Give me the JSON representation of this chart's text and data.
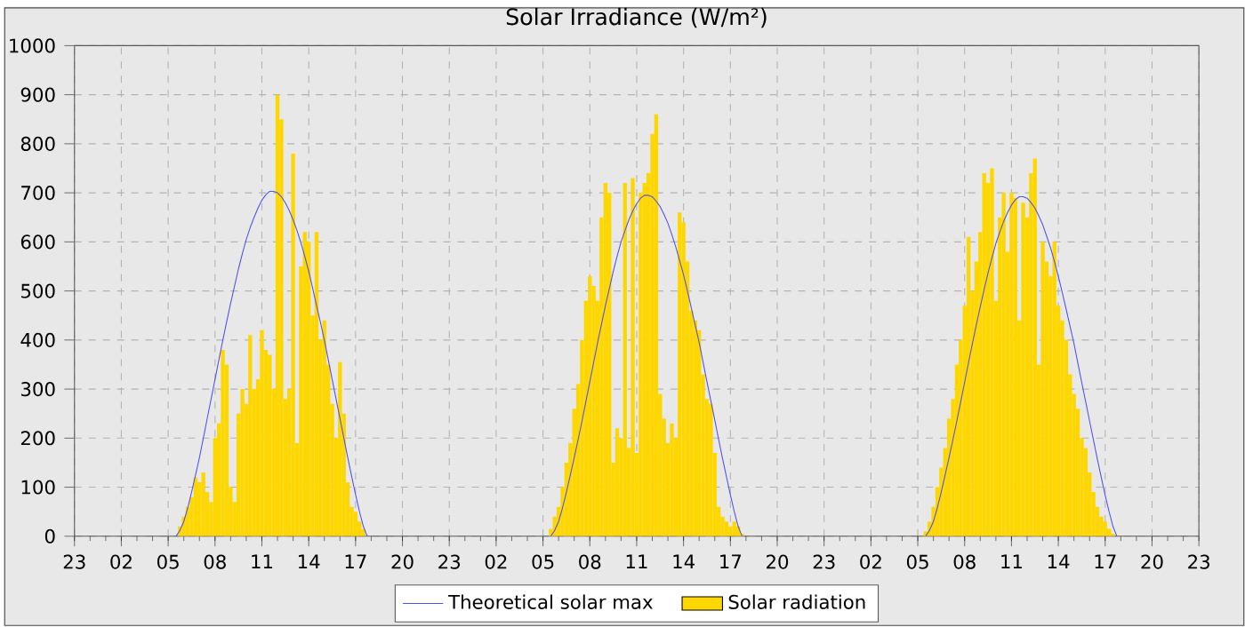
{
  "chart_data": {
    "type": "bar",
    "title": "Solar Irradiance (W/m²)",
    "categories": [
      "23",
      null,
      null,
      null,
      null,
      null,
      null,
      null,
      null,
      null,
      null,
      null,
      "02",
      null,
      null,
      null,
      null,
      null,
      null,
      null,
      null,
      null,
      null,
      null,
      "05",
      null,
      null,
      null,
      null,
      null,
      null,
      null,
      null,
      null,
      null,
      null,
      "08",
      null,
      null,
      null,
      null,
      null,
      null,
      null,
      null,
      null,
      null,
      null,
      "11",
      null,
      null,
      null,
      null,
      null,
      null,
      null,
      null,
      null,
      null,
      null,
      "14",
      null,
      null,
      null,
      null,
      null,
      null,
      null,
      null,
      null,
      null,
      null,
      "17",
      null,
      null,
      null,
      null,
      null,
      null,
      null,
      null,
      null,
      null,
      null,
      "20",
      null,
      null,
      null,
      null,
      null,
      null,
      null,
      null,
      null,
      null,
      null,
      "23",
      null,
      null,
      null,
      null,
      null,
      null,
      null,
      null,
      null,
      null,
      null,
      "02",
      null,
      null,
      null,
      null,
      null,
      null,
      null,
      null,
      null,
      null,
      null,
      "05",
      null,
      null,
      null,
      null,
      null,
      null,
      null,
      null,
      null,
      null,
      null,
      "08",
      null,
      null,
      null,
      null,
      null,
      null,
      null,
      null,
      null,
      null,
      null,
      "11",
      null,
      null,
      null,
      null,
      null,
      null,
      null,
      null,
      null,
      null,
      null,
      "14",
      null,
      null,
      null,
      null,
      null,
      null,
      null,
      null,
      null,
      null,
      null,
      "17",
      null,
      null,
      null,
      null,
      null,
      null,
      null,
      null,
      null,
      null,
      null,
      "20",
      null,
      null,
      null,
      null,
      null,
      null,
      null,
      null,
      null,
      null,
      null,
      "23",
      null,
      null,
      null,
      null,
      null,
      null,
      null,
      null,
      null,
      null,
      null,
      "02",
      null,
      null,
      null,
      null,
      null,
      null,
      null,
      null,
      null,
      null,
      null,
      "05",
      null,
      null,
      null,
      null,
      null,
      null,
      null,
      null,
      null,
      null,
      null,
      "08",
      null,
      null,
      null,
      null,
      null,
      null,
      null,
      null,
      null,
      null,
      null,
      "11",
      null,
      null,
      null,
      null,
      null,
      null,
      null,
      null,
      null,
      null,
      null,
      "14",
      null,
      null,
      null,
      null,
      null,
      null,
      null,
      null,
      null,
      null,
      null,
      "17",
      null,
      null,
      null,
      null,
      null,
      null,
      null,
      null,
      null,
      null,
      null,
      "20",
      null,
      null,
      null,
      null,
      null,
      null,
      null,
      null,
      null,
      null,
      null,
      "23"
    ],
    "ylim": [
      0,
      1000
    ],
    "yticks": [
      0,
      100,
      200,
      300,
      400,
      500,
      600,
      700,
      800,
      900,
      1000
    ],
    "grid": true,
    "legend": "bottom",
    "series": [
      {
        "name": "Theoretical solar max",
        "type": "line",
        "color": "#5050f0",
        "values": [
          null,
          null,
          null,
          null,
          null,
          null,
          null,
          null,
          null,
          null,
          null,
          null,
          null,
          null,
          null,
          null,
          null,
          null,
          null,
          null,
          null,
          null,
          null,
          null,
          null,
          null,
          0,
          12,
          30,
          58,
          90,
          125,
          160,
          200,
          240,
          280,
          320,
          360,
          400,
          438,
          475,
          510,
          545,
          576,
          605,
          629,
          650,
          669,
          685,
          696,
          703,
          703,
          700,
          692,
          680,
          664,
          645,
          623,
          598,
          570,
          540,
          506,
          470,
          436,
          400,
          360,
          320,
          280,
          240,
          200,
          160,
          122,
          85,
          50,
          20,
          0,
          null,
          null,
          null,
          null,
          null,
          null,
          null,
          null,
          null,
          null,
          null,
          null,
          null,
          null,
          null,
          null,
          null,
          null,
          null,
          null,
          null,
          null,
          null,
          null,
          null,
          null,
          null,
          null,
          null,
          null,
          null,
          null,
          null,
          null,
          null,
          null,
          null,
          null,
          null,
          null,
          null,
          null,
          null,
          null,
          null,
          null,
          0,
          12,
          30,
          58,
          90,
          125,
          160,
          197,
          235,
          275,
          315,
          355,
          395,
          433,
          470,
          505,
          540,
          571,
          600,
          623,
          645,
          663,
          678,
          689,
          695,
          695,
          692,
          683,
          672,
          656,
          638,
          615,
          590,
          562,
          533,
          500,
          465,
          430,
          395,
          355,
          315,
          276,
          237,
          197,
          158,
          121,
          84,
          50,
          20,
          0,
          null,
          null,
          null,
          null,
          null,
          null,
          null,
          null,
          null,
          null,
          null,
          null,
          null,
          null,
          null,
          null,
          null,
          null,
          null,
          null,
          null,
          null,
          null,
          null,
          null,
          null,
          null,
          null,
          null,
          null,
          null,
          null,
          null,
          null,
          null,
          null,
          null,
          null,
          null,
          null,
          null,
          null,
          null,
          null,
          null,
          null,
          0,
          12,
          30,
          58,
          90,
          125,
          160,
          197,
          235,
          274,
          314,
          354,
          393,
          431,
          468,
          503,
          537,
          568,
          597,
          620,
          642,
          660,
          675,
          686,
          692,
          692,
          689,
          680,
          669,
          653,
          635,
          612,
          588,
          560,
          530,
          497,
          463,
          428,
          393,
          353,
          313,
          274,
          235,
          196,
          157,
          120,
          83,
          50,
          20,
          0,
          null,
          null,
          null,
          null,
          null,
          null,
          null,
          null,
          null,
          null,
          null,
          null,
          null,
          null,
          null,
          null,
          null,
          null,
          null,
          null,
          null
        ]
      },
      {
        "name": "Solar radiation",
        "color": "#ffd700",
        "values": [
          null,
          null,
          null,
          null,
          null,
          null,
          null,
          null,
          null,
          null,
          null,
          null,
          null,
          null,
          null,
          null,
          null,
          null,
          null,
          null,
          null,
          null,
          null,
          null,
          null,
          null,
          null,
          20,
          40,
          60,
          80,
          120,
          110,
          130,
          90,
          70,
          200,
          230,
          380,
          350,
          100,
          70,
          250,
          300,
          270,
          410,
          300,
          320,
          420,
          380,
          370,
          300,
          900,
          850,
          280,
          300,
          780,
          190,
          550,
          620,
          600,
          450,
          620,
          400,
          440,
          350,
          270,
          200,
          355,
          250,
          110,
          60,
          50,
          30,
          15,
          null,
          null,
          null,
          null,
          null,
          null,
          null,
          null,
          null,
          null,
          null,
          null,
          null,
          null,
          null,
          null,
          null,
          null,
          null,
          null,
          null,
          null,
          null,
          null,
          null,
          null,
          null,
          null,
          null,
          null,
          null,
          null,
          null,
          null,
          null,
          null,
          null,
          null,
          null,
          null,
          null,
          null,
          null,
          null,
          null,
          null,
          null,
          15,
          40,
          60,
          100,
          150,
          190,
          260,
          310,
          400,
          480,
          530,
          510,
          480,
          650,
          720,
          700,
          150,
          220,
          200,
          720,
          180,
          730,
          170,
          700,
          720,
          740,
          820,
          860,
          290,
          240,
          190,
          230,
          200,
          660,
          640,
          560,
          460,
          440,
          420,
          330,
          280,
          270,
          170,
          60,
          40,
          30,
          20,
          30,
          20,
          5,
          null,
          null,
          null,
          null,
          null,
          null,
          null,
          null,
          null,
          null,
          null,
          null,
          null,
          null,
          null,
          null,
          null,
          null,
          null,
          null,
          null,
          null,
          null,
          null,
          null,
          null,
          null,
          null,
          null,
          null,
          null,
          null,
          null,
          null,
          null,
          null,
          null,
          null,
          null,
          null,
          null,
          null,
          null,
          null,
          null,
          null,
          10,
          30,
          60,
          100,
          140,
          180,
          240,
          280,
          350,
          400,
          470,
          610,
          500,
          560,
          620,
          740,
          720,
          750,
          480,
          650,
          700,
          580,
          700,
          690,
          440,
          680,
          650,
          740,
          770,
          350,
          600,
          560,
          530,
          600,
          470,
          440,
          400,
          330,
          290,
          260,
          200,
          180,
          130,
          90,
          60,
          40,
          30,
          15,
          5,
          null,
          null,
          null,
          null,
          null,
          null,
          null,
          null,
          null,
          null,
          null,
          null,
          null,
          null,
          null,
          null,
          null,
          null,
          null,
          null,
          null,
          null
        ]
      }
    ]
  }
}
